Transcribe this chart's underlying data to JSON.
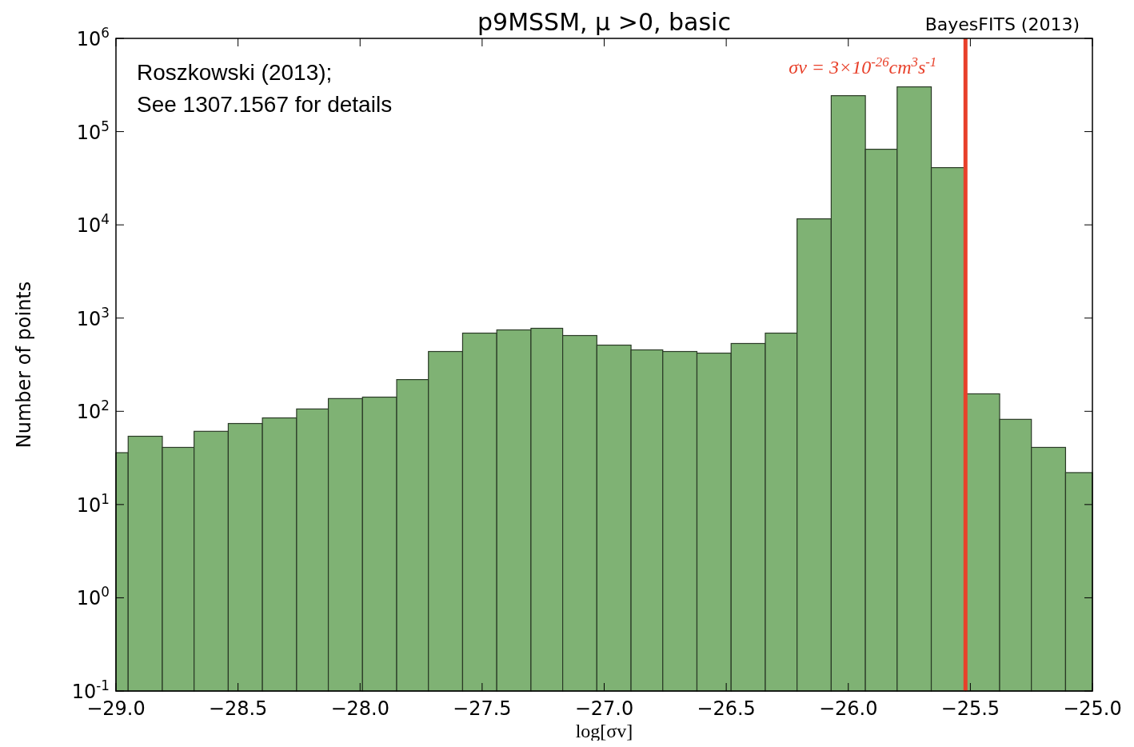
{
  "chart_data": {
    "type": "histogram",
    "title": "p9MSSM, μ >0, basic",
    "xlabel": "log[σv]",
    "ylabel": "Number of points",
    "annotations": [
      "BayesFITS (2013)",
      "Roszkowski (2013);",
      "See 1307.1567 for details"
    ],
    "bins": [
      -29.0,
      -28.95,
      -28.81,
      -28.68,
      -28.54,
      -28.4,
      -28.26,
      -28.13,
      -27.99,
      -27.85,
      -27.72,
      -27.58,
      -27.44,
      -27.3,
      -27.17,
      -27.03,
      -26.89,
      -26.76,
      -26.62,
      -26.48,
      -26.34,
      -26.21,
      -26.07,
      -25.93,
      -25.8,
      -25.66,
      -25.52,
      -25.38,
      -25.25,
      -25.11,
      -25.0
    ],
    "values": [
      36,
      54,
      41,
      61,
      74,
      85,
      106,
      137,
      142,
      219,
      438,
      690,
      747,
      777,
      650,
      513,
      456,
      438,
      421,
      534,
      690,
      11600,
      243000,
      64700,
      302000,
      41100,
      154,
      82,
      41,
      22
    ],
    "color": "#7fb274",
    "log": true,
    "xlim": [
      -29.0,
      -25.0
    ],
    "xticks": [
      {
        "value": -29.0,
        "label": "−29.0"
      },
      {
        "value": -28.5,
        "label": "−28.5"
      },
      {
        "value": -28.0,
        "label": "−28.0"
      },
      {
        "value": -27.5,
        "label": "−27.5"
      },
      {
        "value": -27.0,
        "label": "−27.0"
      },
      {
        "value": -26.5,
        "label": "−26.5"
      },
      {
        "value": -26.0,
        "label": "−26.0"
      },
      {
        "value": -25.5,
        "label": "−25.5"
      },
      {
        "value": -25.0,
        "label": "−25.0"
      }
    ],
    "ylim": [
      0.1,
      1000000
    ],
    "yticks": [
      {
        "value": 0.1,
        "label": "10$^{-1}$"
      },
      {
        "value": 1,
        "label": "10$^{0}$"
      },
      {
        "value": 10,
        "label": "10$^{1}$"
      },
      {
        "value": 100,
        "label": "10$^{2}$"
      },
      {
        "value": 1000,
        "label": "10$^{3}$"
      },
      {
        "value": 10000,
        "label": "10$^{4}$"
      },
      {
        "value": 100000,
        "label": "10$^{5}$"
      },
      {
        "value": 1000000,
        "label": "10$^{6}$"
      }
    ],
    "ref_lines": [
      {
        "axis": "x",
        "value": -25.52,
        "label": "σv = 3×10$^{-26}$cm$^{3}$s$^{-1}$",
        "color": "#e8402a"
      }
    ],
    "grid": false
  }
}
